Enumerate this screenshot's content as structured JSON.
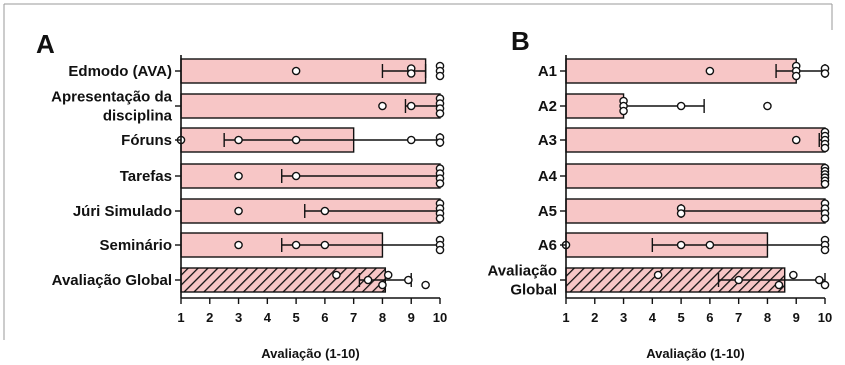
{
  "chart_data": [
    {
      "panel": "A",
      "type": "bar",
      "orientation": "horizontal",
      "xlabel": "Avaliação (1-10)",
      "xlim": [
        1,
        10
      ],
      "xticks": [
        "1",
        "2",
        "3",
        "4",
        "5",
        "6",
        "7",
        "8",
        "9",
        "10"
      ],
      "categories": [
        {
          "label": [
            "Edmodo (AVA)"
          ],
          "value": 9.5,
          "err": [
            8.0,
            9.5
          ],
          "points": [
            5,
            9,
            9,
            10,
            10,
            10
          ],
          "pattern": "solid"
        },
        {
          "label": [
            "Apresentação da",
            "disciplina"
          ],
          "value": 10,
          "err": [
            8.8,
            10
          ],
          "points": [
            8,
            9,
            10,
            10,
            10,
            10
          ],
          "pattern": "solid"
        },
        {
          "label": [
            "Fóruns"
          ],
          "value": 7,
          "err": [
            2.5,
            10
          ],
          "points": [
            1,
            3,
            5,
            9,
            10,
            10
          ],
          "pattern": "solid"
        },
        {
          "label": [
            "Tarefas"
          ],
          "value": 10,
          "err": [
            4.5,
            10
          ],
          "points": [
            3,
            5,
            10,
            10,
            10,
            10
          ],
          "pattern": "solid"
        },
        {
          "label": [
            "Júri Simulado"
          ],
          "value": 10,
          "err": [
            5.3,
            10
          ],
          "points": [
            3,
            6,
            10,
            10,
            10,
            10
          ],
          "pattern": "solid"
        },
        {
          "label": [
            "Seminário"
          ],
          "value": 8,
          "err": [
            4.5,
            10
          ],
          "points": [
            3,
            5,
            6,
            10,
            10,
            10
          ],
          "pattern": "solid"
        },
        {
          "label": [
            "Avaliação Global"
          ],
          "value": 8.1,
          "err": [
            7.2,
            9.0
          ],
          "points": [
            6.4,
            7.5,
            8.0,
            8.2,
            8.9,
            9.5
          ],
          "pattern": "hatched"
        }
      ]
    },
    {
      "panel": "B",
      "type": "bar",
      "orientation": "horizontal",
      "xlabel": "Avaliação (1-10)",
      "xlim": [
        1,
        10
      ],
      "xticks": [
        "1",
        "2",
        "3",
        "4",
        "5",
        "6",
        "7",
        "8",
        "9",
        "10"
      ],
      "categories": [
        {
          "label": [
            "A1"
          ],
          "value": 9,
          "err": [
            8.3,
            10
          ],
          "points": [
            6,
            9,
            9,
            9,
            10,
            10
          ],
          "pattern": "solid"
        },
        {
          "label": [
            "A2"
          ],
          "value": 3,
          "err": [
            3,
            5.8
          ],
          "points": [
            3,
            3,
            3,
            5,
            8
          ],
          "pattern": "solid"
        },
        {
          "label": [
            "A3"
          ],
          "value": 10,
          "err": [
            9.8,
            10
          ],
          "points": [
            9,
            10,
            10,
            10,
            10,
            10
          ],
          "pattern": "solid"
        },
        {
          "label": [
            "A4"
          ],
          "value": 10,
          "err": [
            10,
            10
          ],
          "points": [
            10,
            10,
            10,
            10,
            10,
            10
          ],
          "pattern": "solid"
        },
        {
          "label": [
            "A5"
          ],
          "value": 10,
          "err": [
            5,
            10
          ],
          "points": [
            5,
            5,
            10,
            10,
            10,
            10
          ],
          "pattern": "solid"
        },
        {
          "label": [
            "A6"
          ],
          "value": 8,
          "err": [
            4,
            10
          ],
          "points": [
            1,
            5,
            6,
            10,
            10,
            10
          ],
          "pattern": "solid"
        },
        {
          "label": [
            "Avaliação",
            "Global"
          ],
          "value": 8.6,
          "err": [
            6.3,
            10
          ],
          "points": [
            4.2,
            7.0,
            8.4,
            8.9,
            9.8,
            10
          ],
          "pattern": "hatched"
        }
      ]
    }
  ]
}
